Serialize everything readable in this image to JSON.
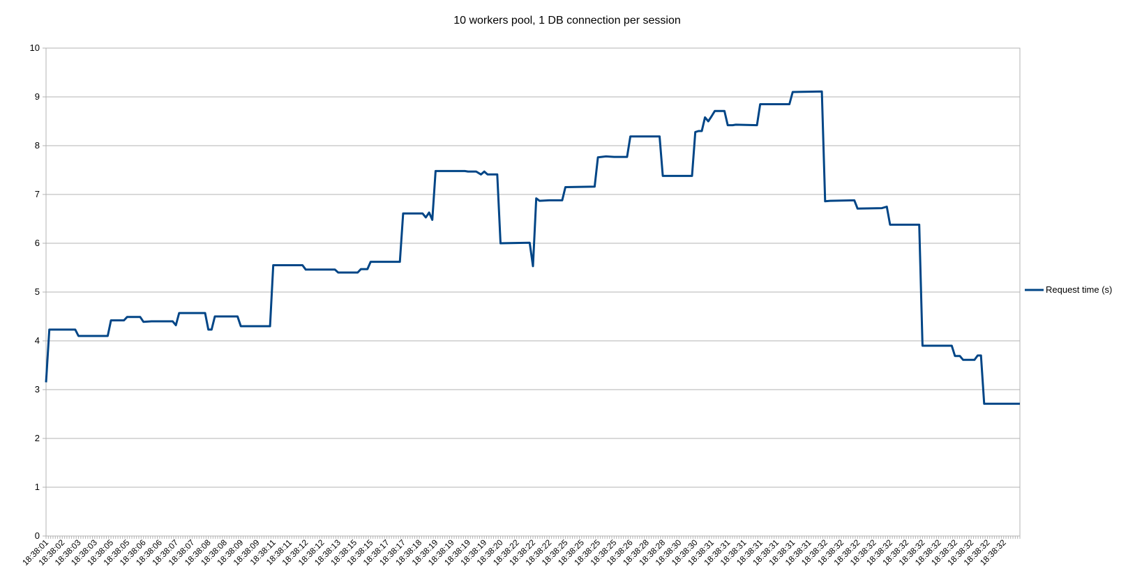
{
  "chart_data": {
    "type": "line",
    "title": "10 workers pool, 1 DB connection per session",
    "xlabel": "",
    "ylabel": "",
    "ylim": [
      0,
      10
    ],
    "yticks": [
      0,
      1,
      2,
      3,
      4,
      5,
      6,
      7,
      8,
      9,
      10
    ],
    "grid": true,
    "legend_position": "right",
    "x_ticks": [
      "18:38:01",
      "18:38:02",
      "18:38:03",
      "18:38:03",
      "18:38:05",
      "18:38:05",
      "18:38:06",
      "18:38:06",
      "18:38:07",
      "18:38:07",
      "18:38:08",
      "18:38:08",
      "18:38:09",
      "18:38:09",
      "18:38:11",
      "18:38:11",
      "18:38:12",
      "18:38:12",
      "18:38:13",
      "18:38:15",
      "18:38:15",
      "18:38:17",
      "18:38:17",
      "18:38:18",
      "18:38:19",
      "18:38:19",
      "18:38:19",
      "18:38:19",
      "18:38:20",
      "18:38:22",
      "18:38:22",
      "18:38:22",
      "18:38:25",
      "18:38:25",
      "18:38:25",
      "18:38:25",
      "18:38:26",
      "18:38:28",
      "18:38:28",
      "18:38:30",
      "18:38:30",
      "18:38:31",
      "18:38:31",
      "18:38:31",
      "18:38:31",
      "18:38:31",
      "18:38:31",
      "18:38:31",
      "18:38:32",
      "18:38:32",
      "18:38:32",
      "18:38:32",
      "18:38:32",
      "18:38:32",
      "18:38:32",
      "18:38:32",
      "18:38:32",
      "18:38:32",
      "18:38:32",
      "18:38:32"
    ],
    "series": [
      {
        "name": "Request time (s)",
        "color": "#004586",
        "points": [
          [
            0,
            3.15
          ],
          [
            0.2,
            4.23
          ],
          [
            1.8,
            4.23
          ],
          [
            2.0,
            4.1
          ],
          [
            3.8,
            4.1
          ],
          [
            4.0,
            4.42
          ],
          [
            4.8,
            4.42
          ],
          [
            5.0,
            4.49
          ],
          [
            5.8,
            4.49
          ],
          [
            6.0,
            4.39
          ],
          [
            6.5,
            4.4
          ],
          [
            7.8,
            4.4
          ],
          [
            8.0,
            4.32
          ],
          [
            8.2,
            4.57
          ],
          [
            9.8,
            4.57
          ],
          [
            10.0,
            4.23
          ],
          [
            10.2,
            4.23
          ],
          [
            10.4,
            4.5
          ],
          [
            11.8,
            4.5
          ],
          [
            12.0,
            4.3
          ],
          [
            13.8,
            4.3
          ],
          [
            14.0,
            5.55
          ],
          [
            15.8,
            5.55
          ],
          [
            16.0,
            5.46
          ],
          [
            17.8,
            5.46
          ],
          [
            18.0,
            5.4
          ],
          [
            19.2,
            5.4
          ],
          [
            19.4,
            5.47
          ],
          [
            19.8,
            5.47
          ],
          [
            20.0,
            5.62
          ],
          [
            21.8,
            5.62
          ],
          [
            22.0,
            6.61
          ],
          [
            23.2,
            6.61
          ],
          [
            23.4,
            6.53
          ],
          [
            23.6,
            6.63
          ],
          [
            23.8,
            6.48
          ],
          [
            24.0,
            7.48
          ],
          [
            25.8,
            7.48
          ],
          [
            26.0,
            7.47
          ],
          [
            26.5,
            7.47
          ],
          [
            26.8,
            7.41
          ],
          [
            27.0,
            7.47
          ],
          [
            27.2,
            7.41
          ],
          [
            27.8,
            7.41
          ],
          [
            28.0,
            6.0
          ],
          [
            29.8,
            6.01
          ],
          [
            30.0,
            5.53
          ],
          [
            30.2,
            6.92
          ],
          [
            30.4,
            6.87
          ],
          [
            31.0,
            6.88
          ],
          [
            31.8,
            6.88
          ],
          [
            32.0,
            7.15
          ],
          [
            33.8,
            7.16
          ],
          [
            34.0,
            7.76
          ],
          [
            34.5,
            7.78
          ],
          [
            35.0,
            7.77
          ],
          [
            35.8,
            7.77
          ],
          [
            36.0,
            8.19
          ],
          [
            37.8,
            8.19
          ],
          [
            38.0,
            7.38
          ],
          [
            39.8,
            7.38
          ],
          [
            40.0,
            8.28
          ],
          [
            40.2,
            8.3
          ],
          [
            40.4,
            8.3
          ],
          [
            40.6,
            8.58
          ],
          [
            40.8,
            8.5
          ],
          [
            41.0,
            8.6
          ],
          [
            41.2,
            8.71
          ],
          [
            41.8,
            8.71
          ],
          [
            42.0,
            8.42
          ],
          [
            42.3,
            8.42
          ],
          [
            42.5,
            8.43
          ],
          [
            43.8,
            8.42
          ],
          [
            44.0,
            8.85
          ],
          [
            45.8,
            8.85
          ],
          [
            46.0,
            9.1
          ],
          [
            47.8,
            9.11
          ],
          [
            48.0,
            6.86
          ],
          [
            48.3,
            6.87
          ],
          [
            49.8,
            6.88
          ],
          [
            50.0,
            6.71
          ],
          [
            51.5,
            6.72
          ],
          [
            51.8,
            6.75
          ],
          [
            52.0,
            6.38
          ],
          [
            53.8,
            6.38
          ],
          [
            54.0,
            3.9
          ],
          [
            55.8,
            3.9
          ],
          [
            56.0,
            3.69
          ],
          [
            56.3,
            3.69
          ],
          [
            56.5,
            3.61
          ],
          [
            57.2,
            3.61
          ],
          [
            57.4,
            3.7
          ],
          [
            57.6,
            3.7
          ],
          [
            57.8,
            2.71
          ],
          [
            60.0,
            2.71
          ]
        ]
      }
    ]
  }
}
